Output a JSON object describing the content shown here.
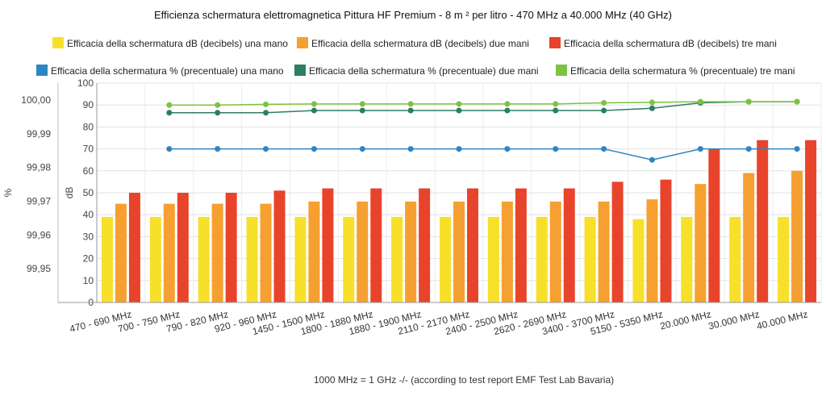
{
  "chart_data": {
    "type": "bar",
    "title": "Efficienza schermatura elettromagnetica Pittura HF Premium - 8 m ² per litro - 470 MHz a 40.000 MHz (40 GHz)",
    "footnote": "1000 MHz = 1 GHz -/- (according to test report EMF Test Lab Bavaria)",
    "ylabel_left": "%",
    "ylabel_right": "dB",
    "y_db_range": [
      0,
      100
    ],
    "y_db_ticks": [
      "0",
      "10",
      "20",
      "30",
      "40",
      "50",
      "60",
      "70",
      "80",
      "90",
      "100"
    ],
    "y_pct_range": [
      99.94,
      100.005
    ],
    "y_pct_ticks": [
      {
        "value": 99.95,
        "label": "99,95"
      },
      {
        "value": 99.96,
        "label": "99,96"
      },
      {
        "value": 99.97,
        "label": "99,97"
      },
      {
        "value": 99.98,
        "label": "99,98"
      },
      {
        "value": 99.99,
        "label": "99,99"
      },
      {
        "value": 100.0,
        "label": "100,00"
      }
    ],
    "categories": [
      "470 - 690 MHz",
      "700 - 750 MHz",
      "790 - 820 MHz",
      "920 - 960 MHz",
      "1450 - 1500 MHz",
      "1800 - 1880 MHz",
      "1880 - 1900 MHz",
      "2110 - 2170 MHz",
      "2400 - 2500 MHz",
      "2620 - 2690 MHz",
      "3400 - 3700 MHz",
      "5150 - 5350 MHz",
      "20.000 MHz",
      "30.000 MHz",
      "40.000 MHz"
    ],
    "bar_series": [
      {
        "name": "Efficacia della schermatura dB (decibels) una mano",
        "color": "#f7e02a",
        "values": [
          39,
          39,
          39,
          39,
          39,
          39,
          39,
          39,
          39,
          39,
          39,
          38,
          39,
          39,
          39
        ]
      },
      {
        "name": "Efficacia della schermatura dB (decibels) due mani",
        "color": "#f5a030",
        "values": [
          45,
          45,
          45,
          45,
          46,
          46,
          46,
          46,
          46,
          46,
          46,
          47,
          54,
          59,
          60
        ]
      },
      {
        "name": "Efficacia della schermatura dB (decibels) tre mani",
        "color": "#e8442c",
        "values": [
          50,
          50,
          50,
          51,
          52,
          52,
          52,
          52,
          52,
          52,
          55,
          56,
          70,
          74,
          74
        ]
      }
    ],
    "line_series": [
      {
        "name": "Efficacia della schermatura % (precentuale) una mano",
        "color": "#2e86c1",
        "values": [
          null,
          70,
          70,
          70,
          70,
          70,
          70,
          70,
          70,
          70,
          70,
          65,
          70,
          70,
          70
        ]
      },
      {
        "name": "Efficacia della schermatura % (precentuale) due mani",
        "color": "#2e7d65",
        "values": [
          null,
          86.5,
          86.5,
          86.5,
          87.5,
          87.5,
          87.5,
          87.5,
          87.5,
          87.5,
          87.5,
          88.5,
          91,
          91.5,
          91.5
        ]
      },
      {
        "name": "Efficacia della schermatura % (precentuale) tre mani",
        "color": "#7dc242",
        "values": [
          null,
          90,
          90,
          90.3,
          90.5,
          90.5,
          90.5,
          90.5,
          90.5,
          90.5,
          91,
          91.2,
          91.5,
          91.5,
          91.5
        ]
      }
    ],
    "legend_placement": "top",
    "grid": true
  }
}
